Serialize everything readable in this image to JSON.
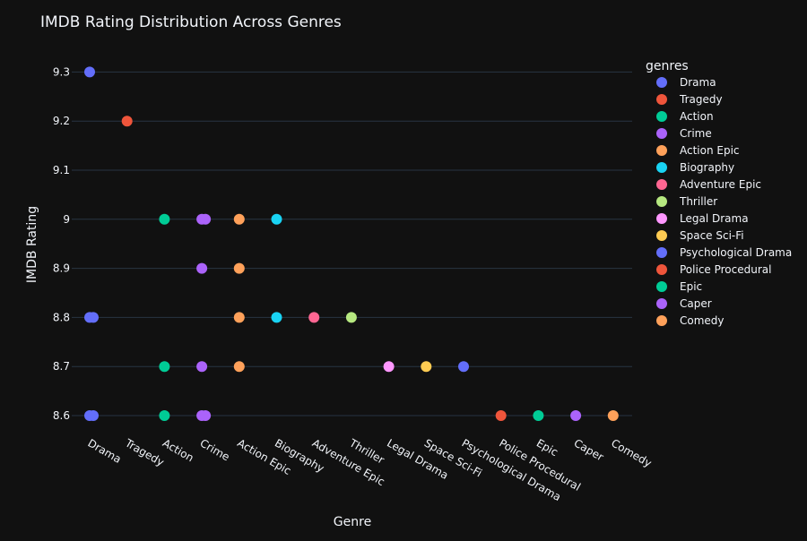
{
  "chart_data": {
    "type": "scatter",
    "title": "IMDB Rating Distribution Across Genres",
    "xlabel": "Genre",
    "ylabel": "IMDB Rating",
    "categories": [
      "Drama",
      "Tragedy",
      "Action",
      "Crime",
      "Action Epic",
      "Biography",
      "Adventure Epic",
      "Thriller",
      "Legal Drama",
      "Space Sci-Fi",
      "Psychological Drama",
      "Police Procedural",
      "Epic",
      "Caper",
      "Comedy"
    ],
    "y_ticks": [
      "8.6",
      "8.7",
      "8.8",
      "8.9",
      "9",
      "9.1",
      "9.2",
      "9.3"
    ],
    "ylim": [
      8.55,
      9.33
    ],
    "grid": true,
    "legend_title": "genres",
    "legend_position": "top-right",
    "series": [
      {
        "name": "Drama",
        "color": "#636efa",
        "points": [
          {
            "x": "Drama",
            "y": 9.3
          },
          {
            "x": "Drama",
            "y": 8.8
          },
          {
            "x": "Drama",
            "y": 8.8
          },
          {
            "x": "Drama",
            "y": 8.6
          },
          {
            "x": "Drama",
            "y": 8.6
          }
        ]
      },
      {
        "name": "Tragedy",
        "color": "#EF553B",
        "points": [
          {
            "x": "Tragedy",
            "y": 9.2
          }
        ]
      },
      {
        "name": "Action",
        "color": "#00cc96",
        "points": [
          {
            "x": "Action",
            "y": 9.0
          },
          {
            "x": "Action",
            "y": 8.7
          },
          {
            "x": "Action",
            "y": 8.6
          }
        ]
      },
      {
        "name": "Crime",
        "color": "#ab63fa",
        "points": [
          {
            "x": "Crime",
            "y": 9.0
          },
          {
            "x": "Crime",
            "y": 9.0
          },
          {
            "x": "Crime",
            "y": 8.9
          },
          {
            "x": "Crime",
            "y": 8.7
          },
          {
            "x": "Crime",
            "y": 8.6
          },
          {
            "x": "Crime",
            "y": 8.6
          }
        ]
      },
      {
        "name": "Action Epic",
        "color": "#FFA15A",
        "points": [
          {
            "x": "Action Epic",
            "y": 9.0
          },
          {
            "x": "Action Epic",
            "y": 8.9
          },
          {
            "x": "Action Epic",
            "y": 8.8
          },
          {
            "x": "Action Epic",
            "y": 8.7
          }
        ]
      },
      {
        "name": "Biography",
        "color": "#19d3f3",
        "points": [
          {
            "x": "Biography",
            "y": 9.0
          },
          {
            "x": "Biography",
            "y": 8.8
          }
        ]
      },
      {
        "name": "Adventure Epic",
        "color": "#FF6692",
        "points": [
          {
            "x": "Adventure Epic",
            "y": 8.8
          }
        ]
      },
      {
        "name": "Thriller",
        "color": "#B6E880",
        "points": [
          {
            "x": "Thriller",
            "y": 8.8
          }
        ]
      },
      {
        "name": "Legal Drama",
        "color": "#FF97FF",
        "points": [
          {
            "x": "Legal Drama",
            "y": 8.7
          }
        ]
      },
      {
        "name": "Space Sci-Fi",
        "color": "#FECB52",
        "points": [
          {
            "x": "Space Sci-Fi",
            "y": 8.7
          }
        ]
      },
      {
        "name": "Psychological Drama",
        "color": "#636efa",
        "points": [
          {
            "x": "Psychological Drama",
            "y": 8.7
          }
        ]
      },
      {
        "name": "Police Procedural",
        "color": "#EF553B",
        "points": [
          {
            "x": "Police Procedural",
            "y": 8.6
          }
        ]
      },
      {
        "name": "Epic",
        "color": "#00cc96",
        "points": [
          {
            "x": "Epic",
            "y": 8.6
          }
        ]
      },
      {
        "name": "Caper",
        "color": "#ab63fa",
        "points": [
          {
            "x": "Caper",
            "y": 8.6
          }
        ]
      },
      {
        "name": "Comedy",
        "color": "#FFA15A",
        "points": [
          {
            "x": "Comedy",
            "y": 8.6
          }
        ]
      }
    ]
  }
}
